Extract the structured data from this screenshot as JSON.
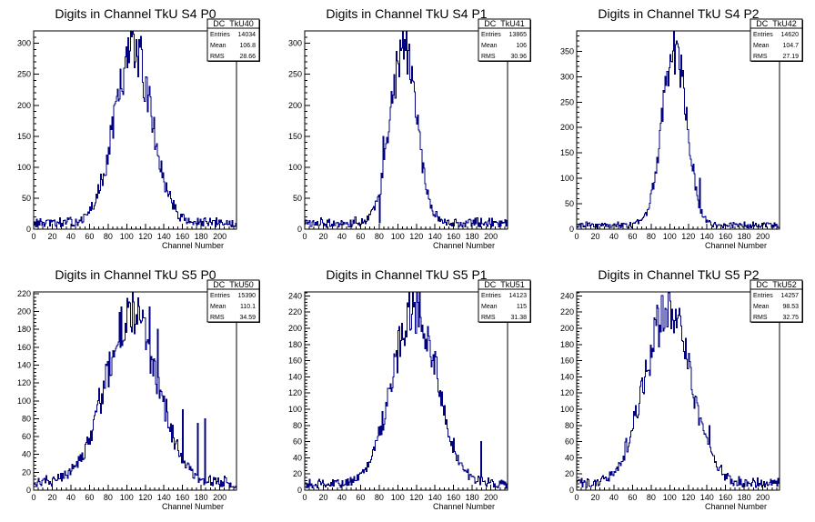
{
  "chart_data": [
    {
      "type": "histogram",
      "title": "Digits in Channel TkU S4 P0",
      "xlabel": "Channel Number",
      "xlim": [
        0,
        218
      ],
      "ylim": [
        0,
        320
      ],
      "xticks": [
        0,
        20,
        40,
        60,
        80,
        100,
        120,
        140,
        160,
        180,
        200
      ],
      "yticks": [
        0,
        50,
        100,
        150,
        200,
        250,
        300
      ],
      "stats": {
        "name": "DC_TkU40",
        "rows": [
          [
            "Entries",
            "14034"
          ],
          [
            "Mean",
            "106.8"
          ],
          [
            "RMS",
            "28.66"
          ]
        ]
      },
      "peak": {
        "center": 107,
        "sigma": 20,
        "height": 282
      },
      "baseline": 10,
      "spikes": [
        [
          110,
          306
        ],
        [
          113,
          306
        ],
        [
          116,
          290
        ]
      ]
    },
    {
      "type": "histogram",
      "title": "Digits in Channel TkU S4 P1",
      "xlabel": "Channel Number",
      "xlim": [
        0,
        218
      ],
      "ylim": [
        0,
        320
      ],
      "xticks": [
        0,
        20,
        40,
        60,
        80,
        100,
        120,
        140,
        160,
        180,
        200
      ],
      "yticks": [
        0,
        50,
        100,
        150,
        200,
        250,
        300
      ],
      "stats": {
        "name": "DC_TkU41",
        "rows": [
          [
            "Entries",
            "13865"
          ],
          [
            "Mean",
            "106"
          ],
          [
            "RMS",
            "30.96"
          ]
        ]
      },
      "peak": {
        "center": 106,
        "sigma": 14,
        "height": 285
      },
      "baseline": 10,
      "spikes": [
        [
          79,
          55
        ],
        [
          80,
          10
        ],
        [
          84,
          150
        ],
        [
          107,
          306
        ]
      ]
    },
    {
      "type": "histogram",
      "title": "Digits in Channel TkU S4 P2",
      "xlabel": "Channel Number",
      "xlim": [
        0,
        218
      ],
      "ylim": [
        0,
        390
      ],
      "xticks": [
        0,
        20,
        40,
        60,
        80,
        100,
        120,
        140,
        160,
        180,
        200
      ],
      "yticks": [
        0,
        50,
        100,
        150,
        200,
        250,
        300,
        350
      ],
      "stats": {
        "name": "DC_TkU42",
        "rows": [
          [
            "Entries",
            "14620"
          ],
          [
            "Mean",
            "104.7"
          ],
          [
            "RMS",
            "27.19"
          ]
        ]
      },
      "peak": {
        "center": 105,
        "sigma": 13,
        "height": 350
      },
      "baseline": 8,
      "spikes": [
        [
          107,
          370
        ],
        [
          108,
          365
        ],
        [
          132,
          100
        ]
      ]
    },
    {
      "type": "histogram",
      "title": "Digits in Channel TkU S5 P0",
      "xlabel": "Channel Number",
      "xlim": [
        0,
        218
      ],
      "ylim": [
        0,
        222
      ],
      "xticks": [
        0,
        20,
        40,
        60,
        80,
        100,
        120,
        140,
        160,
        180,
        200
      ],
      "yticks": [
        0,
        20,
        40,
        60,
        80,
        100,
        120,
        140,
        160,
        180,
        200,
        220
      ],
      "stats": {
        "name": "DC_TkU50",
        "rows": [
          [
            "Entries",
            "15390"
          ],
          [
            "Mean",
            "110.1"
          ],
          [
            "RMS",
            "34.59"
          ]
        ]
      },
      "peak": {
        "center": 105,
        "sigma": 28,
        "height": 190
      },
      "baseline": 8,
      "spikes": [
        [
          103,
          210
        ],
        [
          124,
          205
        ],
        [
          133,
          180
        ],
        [
          160,
          90
        ],
        [
          176,
          75
        ],
        [
          184,
          80
        ]
      ]
    },
    {
      "type": "histogram",
      "title": "Digits in Channel TkU S5 P1",
      "xlabel": "Channel Number",
      "xlim": [
        0,
        218
      ],
      "ylim": [
        0,
        245
      ],
      "xticks": [
        0,
        20,
        40,
        60,
        80,
        100,
        120,
        140,
        160,
        180,
        200
      ],
      "yticks": [
        0,
        20,
        40,
        60,
        80,
        100,
        120,
        140,
        160,
        180,
        200,
        220,
        240
      ],
      "stats": {
        "name": "DC_TkU51",
        "rows": [
          [
            "Entries",
            "14123"
          ],
          [
            "Mean",
            "115"
          ],
          [
            "RMS",
            "31.38"
          ]
        ]
      },
      "peak": {
        "center": 118,
        "sigma": 24,
        "height": 218
      },
      "baseline": 8,
      "spikes": [
        [
          118,
          232
        ],
        [
          189,
          60
        ]
      ]
    },
    {
      "type": "histogram",
      "title": "Digits in Channel TkU S5 P2",
      "xlabel": "Channel Number",
      "xlim": [
        0,
        218
      ],
      "ylim": [
        0,
        245
      ],
      "xticks": [
        0,
        20,
        40,
        60,
        80,
        100,
        120,
        140,
        160,
        180,
        200
      ],
      "yticks": [
        0,
        20,
        40,
        60,
        80,
        100,
        120,
        140,
        160,
        180,
        200,
        220,
        240
      ],
      "stats": {
        "name": "DC_TkU52",
        "rows": [
          [
            "Entries",
            "14257"
          ],
          [
            "Mean",
            "98.53"
          ],
          [
            "RMS",
            "32.75"
          ]
        ]
      },
      "peak": {
        "center": 98,
        "sigma": 25,
        "height": 215
      },
      "baseline": 8,
      "spikes": [
        [
          100,
          234
        ],
        [
          142,
          80
        ]
      ]
    }
  ],
  "colors": {
    "line": "#000080",
    "axis": "#000000",
    "background": "#ffffff"
  }
}
